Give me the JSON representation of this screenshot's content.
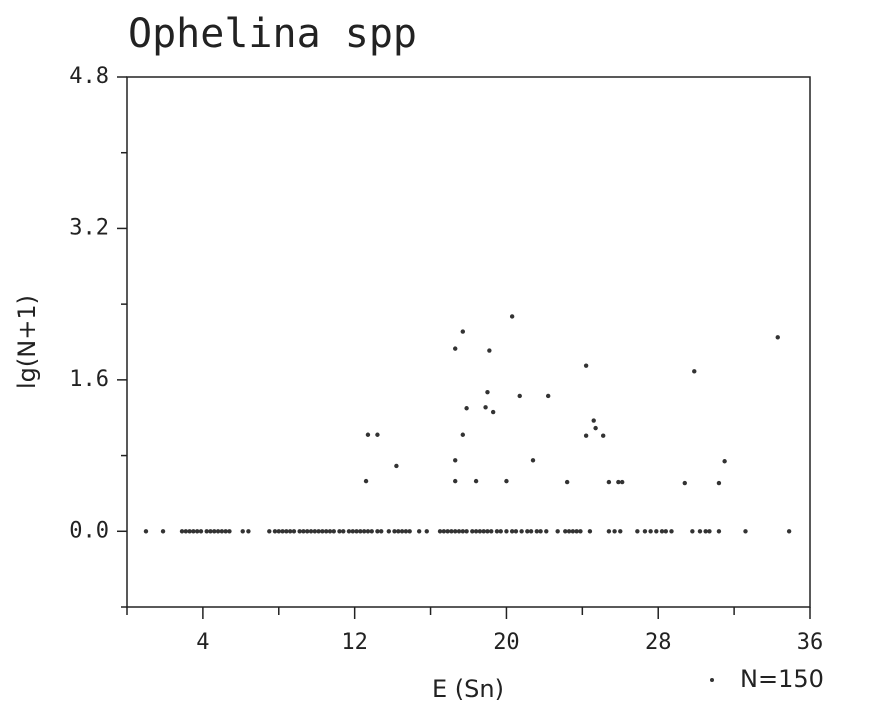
{
  "chart_data": {
    "type": "scatter",
    "title": "Ophelina spp",
    "xlabel": "E (Sn)",
    "ylabel": "lg(N+1)",
    "xlim": [
      0,
      36
    ],
    "xticks": [
      4,
      12,
      20,
      28,
      36
    ],
    "xminorticks": [
      0,
      8,
      16,
      24,
      32
    ],
    "ylim": [
      -0.8,
      4.8
    ],
    "yticks": [
      {
        "value": 0,
        "label": "0.0"
      },
      {
        "value": 1.6,
        "label": "1.6"
      },
      {
        "value": 3.2,
        "label": "3.2"
      },
      {
        "value": 4.8,
        "label": "4.8"
      }
    ],
    "yminorticks": [
      -0.8,
      0.8,
      2.4,
      4.0
    ],
    "legend": "bottom-right",
    "series": [
      {
        "name": "N=150",
        "color": "#333333",
        "x": [
          1.0,
          1.9,
          2.9,
          3.1,
          3.3,
          3.5,
          3.7,
          3.9,
          4.2,
          4.4,
          4.6,
          4.8,
          5.0,
          5.2,
          5.4,
          6.1,
          6.4,
          7.5,
          7.8,
          8.0,
          8.2,
          8.4,
          8.6,
          8.8,
          9.1,
          9.3,
          9.5,
          9.7,
          9.9,
          10.1,
          10.3,
          10.5,
          10.7,
          10.9,
          11.2,
          11.4,
          11.7,
          11.9,
          12.1,
          12.3,
          12.5,
          12.7,
          12.9,
          13.2,
          13.4,
          13.8,
          14.1,
          14.3,
          14.5,
          14.7,
          14.9,
          15.4,
          15.8,
          16.5,
          16.7,
          16.9,
          17.1,
          17.3,
          17.5,
          17.7,
          17.9,
          18.2,
          18.4,
          18.6,
          18.8,
          19.0,
          19.2,
          19.5,
          19.7,
          20.0,
          20.3,
          20.5,
          20.8,
          21.1,
          21.3,
          21.6,
          21.8,
          22.1,
          22.7,
          23.1,
          23.3,
          23.5,
          23.7,
          23.9,
          24.4,
          25.4,
          25.7,
          26.0,
          26.9,
          27.3,
          27.6,
          27.9,
          28.2,
          28.4,
          28.7,
          29.8,
          30.2,
          30.5,
          30.7,
          31.2,
          32.6,
          34.9,
          12.6,
          12.7,
          13.2,
          14.2,
          17.3,
          17.3,
          17.3,
          17.7,
          17.7,
          17.9,
          18.4,
          19.0,
          18.9,
          19.1,
          19.3,
          20.0,
          20.3,
          20.7,
          21.4,
          22.2,
          23.2,
          24.2,
          24.2,
          24.6,
          24.7,
          25.1,
          25.4,
          25.9,
          26.1,
          29.4,
          29.9,
          31.2,
          31.5,
          34.3
        ],
        "values": [
          0,
          0,
          0,
          0,
          0,
          0,
          0,
          0,
          0,
          0,
          0,
          0,
          0,
          0,
          0,
          0,
          0,
          0,
          0,
          0,
          0,
          0,
          0,
          0,
          0,
          0,
          0,
          0,
          0,
          0,
          0,
          0,
          0,
          0,
          0,
          0,
          0,
          0,
          0,
          0,
          0,
          0,
          0,
          0,
          0,
          0,
          0,
          0,
          0,
          0,
          0,
          0,
          0,
          0,
          0,
          0,
          0,
          0,
          0,
          0,
          0,
          0,
          0,
          0,
          0,
          0,
          0,
          0,
          0,
          0,
          0,
          0,
          0,
          0,
          0,
          0,
          0,
          0,
          0,
          0,
          0,
          0,
          0,
          0,
          0,
          0,
          0,
          0,
          0,
          0,
          0,
          0,
          0,
          0,
          0,
          0,
          0,
          0,
          0,
          0,
          0,
          0,
          0.53,
          1.02,
          1.02,
          0.69,
          0.75,
          1.93,
          0.53,
          1.02,
          2.11,
          1.3,
          0.53,
          1.47,
          1.31,
          1.91,
          1.26,
          0.53,
          2.27,
          1.43,
          0.75,
          1.43,
          0.52,
          1.75,
          1.01,
          1.17,
          1.09,
          1.01,
          0.52,
          0.52,
          0.52,
          0.51,
          1.69,
          0.51,
          0.74,
          2.05
        ]
      }
    ]
  }
}
